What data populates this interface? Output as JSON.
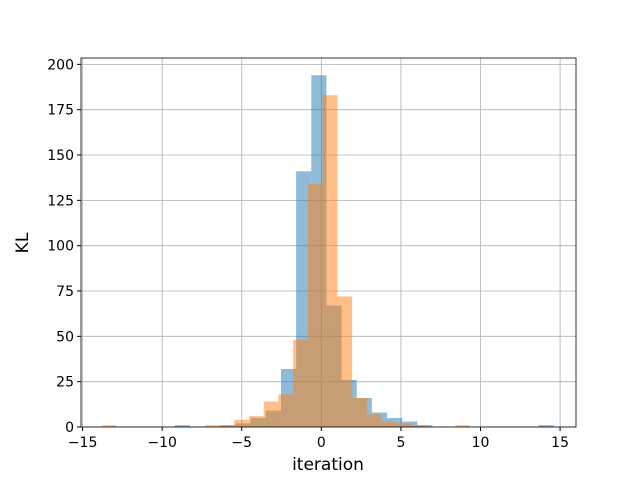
{
  "chart_data": {
    "type": "histogram",
    "xlabel": "iteration",
    "ylabel": "KL",
    "xlim": [
      -15.1,
      16.0
    ],
    "ylim": [
      0,
      203.5
    ],
    "xticks": [
      {
        "value": -15,
        "label": "−15"
      },
      {
        "value": -10,
        "label": "−10"
      },
      {
        "value": -5,
        "label": "−5"
      },
      0,
      5,
      10,
      15
    ],
    "yticks": [
      0,
      25,
      50,
      75,
      100,
      125,
      150,
      175,
      200
    ],
    "grid": true,
    "series": [
      {
        "color": "#1f77b4",
        "alpha": 0.5,
        "bins": [
          -9.2,
          -8.248,
          -7.296,
          -6.344,
          -5.392,
          -4.44,
          -3.488,
          -2.536,
          -1.584,
          -0.632,
          0.32,
          1.272,
          2.224,
          3.176,
          4.128,
          5.08,
          6.032,
          6.984,
          7.936,
          8.888,
          9.84,
          10.792,
          11.744,
          12.696,
          13.648,
          14.6
        ],
        "values": [
          1,
          0,
          0,
          1,
          2,
          5,
          9,
          32,
          141,
          194,
          67,
          26,
          16,
          8,
          5,
          3,
          1,
          0,
          0,
          0,
          0,
          0,
          0,
          0,
          1
        ]
      },
      {
        "color": "#ff7f0e",
        "alpha": 0.5,
        "bins": [
          -13.8,
          -12.874,
          -11.949,
          -11.023,
          -10.098,
          -9.172,
          -8.246,
          -7.321,
          -6.395,
          -5.47,
          -4.544,
          -3.618,
          -2.693,
          -1.767,
          -0.842,
          0.084,
          1.01,
          1.935,
          2.861,
          3.786,
          4.712,
          5.638,
          6.563,
          7.489,
          8.414,
          9.34
        ],
        "values": [
          1,
          0,
          0,
          0,
          0,
          0,
          0,
          1,
          1,
          4,
          6,
          14,
          18,
          48,
          134,
          183,
          72,
          16,
          7,
          3,
          2,
          1,
          0,
          0,
          1
        ]
      }
    ]
  }
}
